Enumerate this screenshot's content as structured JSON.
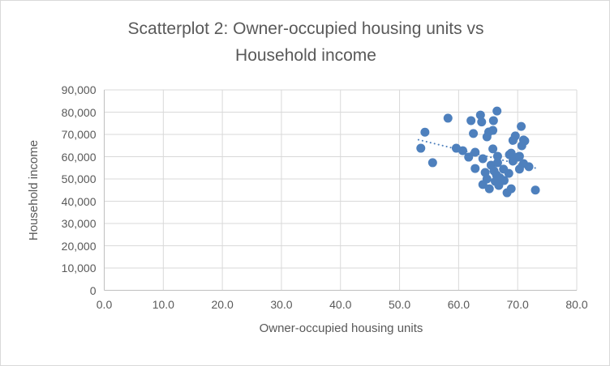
{
  "window": {
    "background": "#ffffff",
    "border_color": "#d9d9d9"
  },
  "colors": {
    "series": "#4e80bd",
    "trendline": "#4e80bd",
    "gridline": "#d9d9d9",
    "axis_line": "#bfbfbf",
    "text": "#595959"
  },
  "chart_data": {
    "type": "scatter",
    "title": "Scatterplot 2: Owner-occupied housing units vs Household income",
    "title_lines": [
      "Scatterplot 2: Owner-occupied housing units vs",
      "Household income"
    ],
    "xlabel": "Owner-occupied housing units",
    "ylabel": "Household income",
    "xlim": [
      0,
      80
    ],
    "ylim": [
      0,
      90000
    ],
    "x_tick_step": 10,
    "y_tick_step": 10000,
    "x_tick_labels": [
      "0.0",
      "10.0",
      "20.0",
      "30.0",
      "40.0",
      "50.0",
      "60.0",
      "70.0",
      "80.0"
    ],
    "y_tick_labels": [
      "0",
      "10,000",
      "20,000",
      "30,000",
      "40,000",
      "50,000",
      "60,000",
      "70,000",
      "80,000",
      "90,000"
    ],
    "grid": true,
    "legend": false,
    "marker_radius": 5.5,
    "series": [
      {
        "name": "Owner-occupied housing units vs Household income",
        "color": "#4e80bd",
        "points": [
          [
            54.3,
            71000
          ],
          [
            53.6,
            63800
          ],
          [
            55.6,
            57300
          ],
          [
            58.2,
            77300
          ],
          [
            62.1,
            76200
          ],
          [
            63.7,
            78700
          ],
          [
            63.9,
            75600
          ],
          [
            66.5,
            80500
          ],
          [
            65.9,
            76200
          ],
          [
            65.8,
            71800
          ],
          [
            65.1,
            71100
          ],
          [
            62.5,
            70400
          ],
          [
            64.8,
            68900
          ],
          [
            70.6,
            73600
          ],
          [
            69.6,
            69300
          ],
          [
            71.2,
            67100
          ],
          [
            69.2,
            67300
          ],
          [
            71.0,
            67500
          ],
          [
            70.7,
            64900
          ],
          [
            59.6,
            63800
          ],
          [
            60.7,
            62700
          ],
          [
            62.8,
            62000
          ],
          [
            65.8,
            63500
          ],
          [
            61.7,
            59800
          ],
          [
            64.1,
            59100
          ],
          [
            66.6,
            60200
          ],
          [
            68.9,
            61600
          ],
          [
            70.3,
            60200
          ],
          [
            68.6,
            60900
          ],
          [
            70.0,
            59800
          ],
          [
            69.2,
            58000
          ],
          [
            62.8,
            54700
          ],
          [
            64.5,
            52900
          ],
          [
            65.5,
            56200
          ],
          [
            66.6,
            57300
          ],
          [
            67.6,
            54400
          ],
          [
            68.5,
            52500
          ],
          [
            66.4,
            51800
          ],
          [
            64.8,
            50000
          ],
          [
            66.2,
            48900
          ],
          [
            67.7,
            49300
          ],
          [
            64.1,
            47500
          ],
          [
            66.8,
            47100
          ],
          [
            68.9,
            45600
          ],
          [
            68.2,
            43800
          ],
          [
            65.2,
            45600
          ],
          [
            66.0,
            53600
          ],
          [
            67.0,
            50500
          ],
          [
            71.0,
            56900
          ],
          [
            71.9,
            55500
          ],
          [
            70.3,
            54400
          ],
          [
            73.0,
            45000
          ]
        ]
      }
    ],
    "trendline": {
      "style": "dotted",
      "color": "#4e80bd",
      "x1": 53.2,
      "y1": 67600,
      "x2": 73.3,
      "y2": 54700
    }
  }
}
